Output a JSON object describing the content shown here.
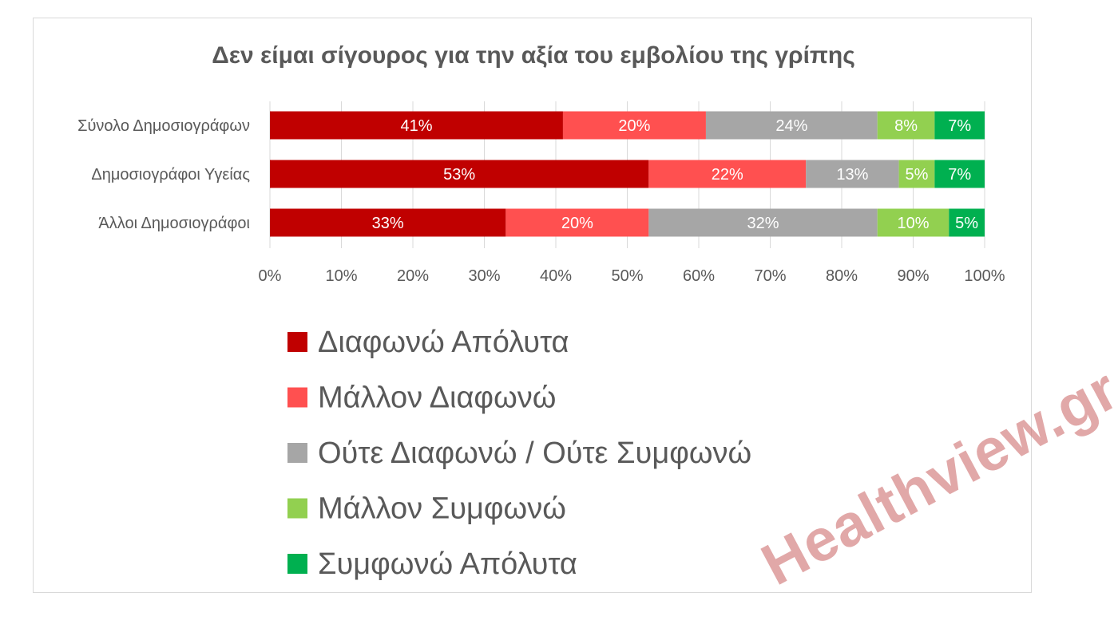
{
  "chart_data": {
    "type": "bar",
    "orientation": "horizontal",
    "stacked": "percent",
    "title": "Δεν είμαι σίγουρος για την αξία του εμβολίου της γρίπης",
    "categories": [
      "Σύνολο Δημοσιογράφων",
      "Δημοσιογράφοι Υγείας",
      "Άλλοι Δημοσιογράφοι"
    ],
    "series": [
      {
        "name": "Διαφωνώ Απόλυτα",
        "color": "#c00000",
        "values": [
          41,
          53,
          33
        ]
      },
      {
        "name": "Μάλλον Διαφωνώ",
        "color": "#ff5050",
        "values": [
          20,
          22,
          20
        ]
      },
      {
        "name": "Ούτε Διαφωνώ / Ούτε Συμφωνώ",
        "color": "#a6a6a6",
        "values": [
          24,
          13,
          32
        ]
      },
      {
        "name": "Μάλλον Συμφωνώ",
        "color": "#92d050",
        "values": [
          8,
          5,
          10
        ]
      },
      {
        "name": "Συμφωνώ Απόλυτα",
        "color": "#00b050",
        "values": [
          7,
          7,
          5
        ]
      }
    ],
    "xlim": [
      0,
      100
    ],
    "x_ticks": [
      "0%",
      "10%",
      "20%",
      "30%",
      "40%",
      "50%",
      "60%",
      "70%",
      "80%",
      "90%",
      "100%"
    ],
    "value_suffix": "%",
    "grid": true,
    "legend_position": "bottom"
  },
  "watermark": "Healthview.gr"
}
